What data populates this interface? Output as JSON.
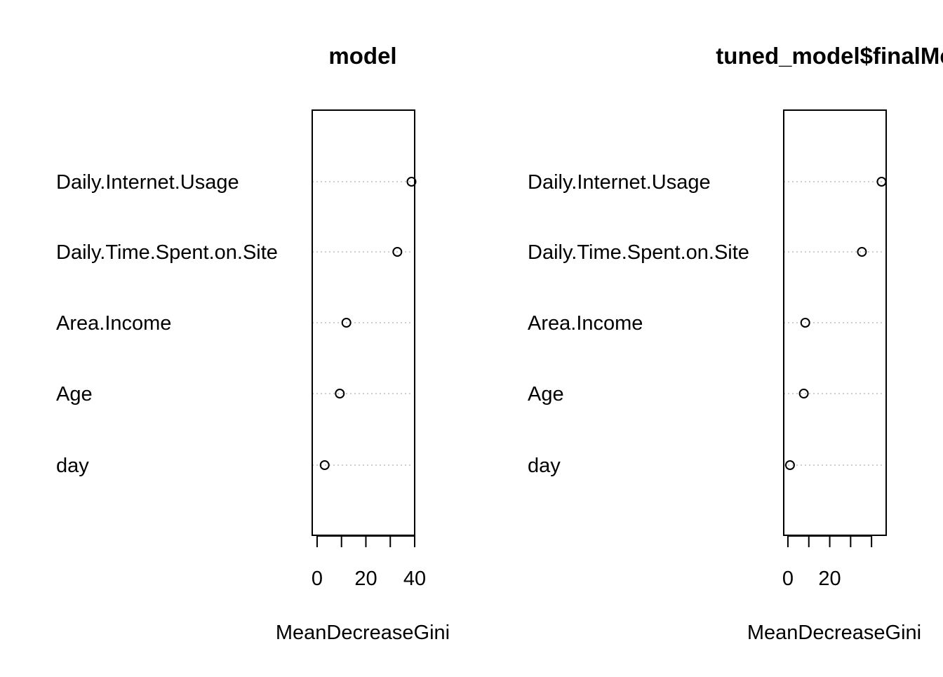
{
  "chart_data": [
    {
      "type": "scatter",
      "subtype": "dotchart",
      "title": "model",
      "xlabel": "MeanDecreaseGini",
      "ylabel": "",
      "xlim": [
        -2,
        40
      ],
      "xticks": [
        0,
        10,
        20,
        30,
        40
      ],
      "xtick_labels": [
        "0",
        "",
        "20",
        "",
        "40"
      ],
      "categories": [
        "Daily.Internet.Usage",
        "Daily.Time.Spent.on.Site",
        "Area.Income",
        "Age",
        "day"
      ],
      "values": [
        38.7,
        32.9,
        12.0,
        9.3,
        3.1
      ],
      "grid": "dotted horizontal guide lines"
    },
    {
      "type": "scatter",
      "subtype": "dotchart",
      "title": "tuned_model$finalMc",
      "xlabel": "MeanDecreaseGini",
      "ylabel": "",
      "xlim": [
        -2,
        47
      ],
      "xticks": [
        0,
        10,
        20,
        30,
        40
      ],
      "xtick_labels": [
        "0",
        "",
        "20",
        "",
        ""
      ],
      "categories": [
        "Daily.Internet.Usage",
        "Daily.Time.Spent.on.Site",
        "Area.Income",
        "Age",
        "day"
      ],
      "values": [
        44.8,
        35.4,
        8.3,
        7.6,
        1.0
      ],
      "grid": "dotted horizontal guide lines"
    }
  ]
}
